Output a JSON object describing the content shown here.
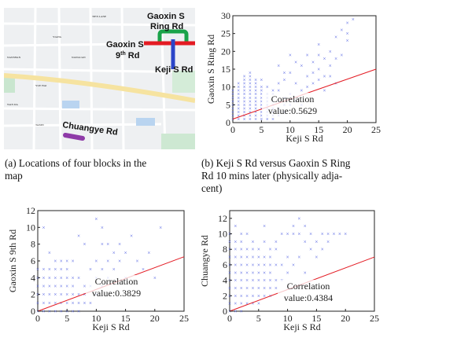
{
  "map": {
    "labels": {
      "gaoxin_ring": [
        "Gaoxin S",
        "Ring Rd"
      ],
      "gaoxin_9th": [
        "Gaoxin S",
        "9"
      ],
      "gaoxin_9th_sup": "th",
      "gaoxin_9th_suffix": " Rd",
      "keji": "Keji S Rd",
      "chuangye": "Chuangye Rd"
    },
    "colors": {
      "ring": "#1aa34a",
      "ninth": "#e31b23",
      "keji": "#2b45c8",
      "chuangye": "#8e3aa8"
    }
  },
  "captions": {
    "a": [
      "(a) Locations of four blocks in the",
      "map"
    ],
    "b": [
      "(b) Keji S Rd versus Gaoxin S Ring",
      "Rd 10 mins later (physically adja-",
      "cent)"
    ]
  },
  "chart_data": [
    {
      "type": "scatter",
      "id": "b",
      "xlabel": "Keji S Rd",
      "ylabel": "Gaoxin S Ring Rd",
      "xlim": [
        0,
        25
      ],
      "ylim": [
        0,
        30
      ],
      "xticks": [
        0,
        5,
        10,
        15,
        20,
        25
      ],
      "yticks": [
        0,
        5,
        10,
        15,
        20,
        25,
        30
      ],
      "annotation": [
        "Correlation",
        "value:0.5629"
      ],
      "trend": {
        "x": [
          0,
          25
        ],
        "y": [
          1,
          15
        ]
      },
      "points": [
        [
          0,
          1
        ],
        [
          0,
          2
        ],
        [
          0,
          3
        ],
        [
          0,
          4
        ],
        [
          0,
          5
        ],
        [
          0,
          6
        ],
        [
          0,
          7
        ],
        [
          0,
          8
        ],
        [
          0,
          9
        ],
        [
          1,
          1
        ],
        [
          1,
          2
        ],
        [
          1,
          3
        ],
        [
          1,
          4
        ],
        [
          1,
          5
        ],
        [
          1,
          6
        ],
        [
          1,
          7
        ],
        [
          1,
          8
        ],
        [
          1,
          9
        ],
        [
          1,
          10
        ],
        [
          1,
          11
        ],
        [
          2,
          1
        ],
        [
          2,
          2
        ],
        [
          2,
          3
        ],
        [
          2,
          4
        ],
        [
          2,
          5
        ],
        [
          2,
          6
        ],
        [
          2,
          7
        ],
        [
          2,
          8
        ],
        [
          2,
          9
        ],
        [
          2,
          10
        ],
        [
          2,
          11
        ],
        [
          2,
          12
        ],
        [
          2,
          13
        ],
        [
          3,
          1
        ],
        [
          3,
          2
        ],
        [
          3,
          3
        ],
        [
          3,
          4
        ],
        [
          3,
          5
        ],
        [
          3,
          6
        ],
        [
          3,
          7
        ],
        [
          3,
          8
        ],
        [
          3,
          9
        ],
        [
          3,
          10
        ],
        [
          3,
          11
        ],
        [
          3,
          12
        ],
        [
          3,
          13
        ],
        [
          3,
          14
        ],
        [
          4,
          1
        ],
        [
          4,
          2
        ],
        [
          4,
          3
        ],
        [
          4,
          4
        ],
        [
          4,
          5
        ],
        [
          4,
          6
        ],
        [
          4,
          7
        ],
        [
          4,
          8
        ],
        [
          4,
          9
        ],
        [
          4,
          10
        ],
        [
          4,
          11
        ],
        [
          4,
          12
        ],
        [
          5,
          1
        ],
        [
          5,
          2
        ],
        [
          5,
          3
        ],
        [
          5,
          4
        ],
        [
          5,
          5
        ],
        [
          5,
          6
        ],
        [
          5,
          7
        ],
        [
          5,
          8
        ],
        [
          5,
          9
        ],
        [
          5,
          10
        ],
        [
          5,
          12
        ],
        [
          6,
          1
        ],
        [
          6,
          2
        ],
        [
          6,
          3
        ],
        [
          6,
          4
        ],
        [
          6,
          5
        ],
        [
          6,
          6
        ],
        [
          6,
          7
        ],
        [
          6,
          8
        ],
        [
          6,
          10
        ],
        [
          7,
          1
        ],
        [
          7,
          2
        ],
        [
          7,
          3
        ],
        [
          7,
          4
        ],
        [
          7,
          5
        ],
        [
          7,
          6
        ],
        [
          7,
          8
        ],
        [
          7,
          9
        ],
        [
          8,
          2
        ],
        [
          8,
          3
        ],
        [
          8,
          4
        ],
        [
          8,
          6
        ],
        [
          8,
          9
        ],
        [
          8,
          11
        ],
        [
          8,
          16
        ],
        [
          9,
          3
        ],
        [
          9,
          5
        ],
        [
          9,
          7
        ],
        [
          9,
          12
        ],
        [
          9,
          14
        ],
        [
          10,
          5
        ],
        [
          10,
          8
        ],
        [
          10,
          14
        ],
        [
          10,
          19
        ],
        [
          11,
          6
        ],
        [
          11,
          11
        ],
        [
          11,
          17
        ],
        [
          12,
          5
        ],
        [
          12,
          9
        ],
        [
          12,
          16
        ],
        [
          13,
          10
        ],
        [
          13,
          13
        ],
        [
          13,
          19
        ],
        [
          14,
          11
        ],
        [
          14,
          14
        ],
        [
          14,
          17
        ],
        [
          15,
          12
        ],
        [
          15,
          15
        ],
        [
          15,
          19
        ],
        [
          15,
          22
        ],
        [
          16,
          9
        ],
        [
          16,
          13
        ],
        [
          16,
          18
        ],
        [
          17,
          13
        ],
        [
          17,
          16
        ],
        [
          17,
          20
        ],
        [
          18,
          11
        ],
        [
          18,
          18
        ],
        [
          18,
          24
        ],
        [
          19,
          19
        ],
        [
          19,
          26
        ],
        [
          20,
          25
        ],
        [
          20,
          28
        ],
        [
          21,
          29
        ],
        [
          20,
          23
        ]
      ]
    },
    {
      "type": "scatter",
      "id": "c",
      "xlabel": "Keji S Rd",
      "ylabel": "Gaoxin S 9th Rd",
      "xlim": [
        0,
        25
      ],
      "ylim": [
        0,
        12
      ],
      "xticks": [
        0,
        5,
        10,
        15,
        20,
        25
      ],
      "yticks": [
        0,
        2,
        4,
        6,
        8,
        10,
        12
      ],
      "annotation": [
        "Correlation",
        "value:0.3829"
      ],
      "trend": {
        "x": [
          0,
          25
        ],
        "y": [
          0,
          6.5
        ]
      },
      "points": [
        [
          0,
          0
        ],
        [
          0,
          1
        ],
        [
          0,
          2
        ],
        [
          0,
          3
        ],
        [
          0,
          4
        ],
        [
          0,
          5
        ],
        [
          1,
          0
        ],
        [
          1,
          1
        ],
        [
          1,
          2
        ],
        [
          1,
          3
        ],
        [
          1,
          4
        ],
        [
          1,
          5
        ],
        [
          1,
          10
        ],
        [
          2,
          0
        ],
        [
          2,
          1
        ],
        [
          2,
          2
        ],
        [
          2,
          3
        ],
        [
          2,
          4
        ],
        [
          2,
          5
        ],
        [
          2,
          7
        ],
        [
          3,
          0
        ],
        [
          3,
          1
        ],
        [
          3,
          2
        ],
        [
          3,
          3
        ],
        [
          3,
          4
        ],
        [
          3,
          5
        ],
        [
          3,
          6
        ],
        [
          4,
          0
        ],
        [
          4,
          1
        ],
        [
          4,
          2
        ],
        [
          4,
          3
        ],
        [
          4,
          4
        ],
        [
          4,
          5
        ],
        [
          4,
          6
        ],
        [
          5,
          0
        ],
        [
          5,
          1
        ],
        [
          5,
          2
        ],
        [
          5,
          3
        ],
        [
          5,
          4
        ],
        [
          5,
          5
        ],
        [
          5,
          6
        ],
        [
          6,
          0
        ],
        [
          6,
          1
        ],
        [
          6,
          2
        ],
        [
          6,
          3
        ],
        [
          6,
          4
        ],
        [
          6,
          6
        ],
        [
          7,
          0
        ],
        [
          7,
          1
        ],
        [
          7,
          2
        ],
        [
          7,
          4
        ],
        [
          7,
          9
        ],
        [
          8,
          1
        ],
        [
          8,
          2
        ],
        [
          8,
          3
        ],
        [
          8,
          8
        ],
        [
          9,
          1
        ],
        [
          9,
          3
        ],
        [
          9,
          5
        ],
        [
          10,
          2
        ],
        [
          10,
          4
        ],
        [
          10,
          6
        ],
        [
          10,
          11
        ],
        [
          11,
          3
        ],
        [
          11,
          5
        ],
        [
          11,
          8
        ],
        [
          11,
          10
        ],
        [
          12,
          4
        ],
        [
          12,
          6
        ],
        [
          12,
          8
        ],
        [
          13,
          5
        ],
        [
          13,
          7
        ],
        [
          14,
          6
        ],
        [
          14,
          8
        ],
        [
          15,
          7
        ],
        [
          15,
          4
        ],
        [
          16,
          9
        ],
        [
          17,
          6
        ],
        [
          18,
          5
        ],
        [
          19,
          7
        ],
        [
          20,
          4
        ],
        [
          21,
          10
        ]
      ]
    },
    {
      "type": "scatter",
      "id": "d",
      "xlabel": "Keji S Rd",
      "ylabel": "Chuangye Rd",
      "xlim": [
        0,
        25
      ],
      "ylim": [
        0,
        13
      ],
      "xticks": [
        0,
        5,
        10,
        15,
        20,
        25
      ],
      "yticks": [
        0,
        2,
        4,
        6,
        8,
        10,
        12
      ],
      "annotation": [
        "Correlation",
        "value:0.4384"
      ],
      "trend": {
        "x": [
          0,
          25
        ],
        "y": [
          0,
          7
        ]
      },
      "points": [
        [
          0,
          0
        ],
        [
          0,
          1
        ],
        [
          0,
          2
        ],
        [
          0,
          3
        ],
        [
          0,
          4
        ],
        [
          0,
          5
        ],
        [
          0,
          6
        ],
        [
          0,
          7
        ],
        [
          0,
          8
        ],
        [
          0,
          9
        ],
        [
          0,
          10
        ],
        [
          1,
          0
        ],
        [
          1,
          1
        ],
        [
          1,
          2
        ],
        [
          1,
          3
        ],
        [
          1,
          4
        ],
        [
          1,
          5
        ],
        [
          1,
          6
        ],
        [
          1,
          7
        ],
        [
          1,
          8
        ],
        [
          1,
          9
        ],
        [
          1,
          11
        ],
        [
          2,
          0
        ],
        [
          2,
          1
        ],
        [
          2,
          2
        ],
        [
          2,
          3
        ],
        [
          2,
          4
        ],
        [
          2,
          5
        ],
        [
          2,
          6
        ],
        [
          2,
          7
        ],
        [
          2,
          8
        ],
        [
          2,
          9
        ],
        [
          2,
          10
        ],
        [
          3,
          1
        ],
        [
          3,
          2
        ],
        [
          3,
          3
        ],
        [
          3,
          4
        ],
        [
          3,
          5
        ],
        [
          3,
          6
        ],
        [
          3,
          7
        ],
        [
          3,
          8
        ],
        [
          3,
          10
        ],
        [
          4,
          1
        ],
        [
          4,
          2
        ],
        [
          4,
          3
        ],
        [
          4,
          4
        ],
        [
          4,
          5
        ],
        [
          4,
          6
        ],
        [
          4,
          7
        ],
        [
          4,
          8
        ],
        [
          4,
          9
        ],
        [
          5,
          1
        ],
        [
          5,
          2
        ],
        [
          5,
          3
        ],
        [
          5,
          4
        ],
        [
          5,
          5
        ],
        [
          5,
          6
        ],
        [
          5,
          7
        ],
        [
          5,
          8
        ],
        [
          6,
          2
        ],
        [
          6,
          3
        ],
        [
          6,
          4
        ],
        [
          6,
          5
        ],
        [
          6,
          6
        ],
        [
          6,
          7
        ],
        [
          6,
          9
        ],
        [
          6,
          11
        ],
        [
          7,
          2
        ],
        [
          7,
          3
        ],
        [
          7,
          4
        ],
        [
          7,
          5
        ],
        [
          7,
          6
        ],
        [
          7,
          7
        ],
        [
          7,
          8
        ],
        [
          8,
          3
        ],
        [
          8,
          4
        ],
        [
          8,
          6
        ],
        [
          8,
          8
        ],
        [
          8,
          9
        ],
        [
          9,
          4
        ],
        [
          9,
          6
        ],
        [
          9,
          10
        ],
        [
          10,
          5
        ],
        [
          10,
          7
        ],
        [
          10,
          10
        ],
        [
          11,
          6
        ],
        [
          11,
          10
        ],
        [
          11,
          11
        ],
        [
          12,
          7
        ],
        [
          12,
          10
        ],
        [
          12,
          12
        ],
        [
          13,
          5
        ],
        [
          13,
          9
        ],
        [
          13,
          11
        ],
        [
          14,
          8
        ],
        [
          14,
          10
        ],
        [
          15,
          7
        ],
        [
          15,
          9
        ],
        [
          16,
          8
        ],
        [
          16,
          10
        ],
        [
          17,
          9
        ],
        [
          17,
          10
        ],
        [
          18,
          10
        ],
        [
          19,
          10
        ],
        [
          20,
          10
        ]
      ]
    }
  ]
}
